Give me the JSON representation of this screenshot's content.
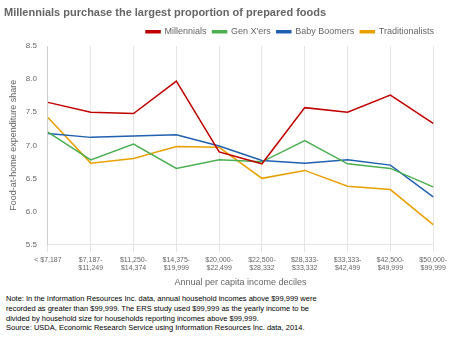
{
  "chart_data": {
    "type": "line",
    "title": "Millennials purchase the largest proportion of prepared foods",
    "ylabel": "Food-at-home expenditure share",
    "xlabel": "Annual per capita income deciles",
    "categories": [
      "< $7,187",
      "$7,187-\n$11,249",
      "$11,250-\n$14,374",
      "$14,375-\n$19,999",
      "$20,000-\n$22,499",
      "$22,500-\n$28,332",
      "$28,333-\n$33,332",
      "$33,333-\n$42,499",
      "$42,500-\n$49,999",
      "$50,000-\n$99,999"
    ],
    "series": [
      {
        "name": "Millennials",
        "color": "#c00000",
        "values": [
          7.65,
          7.5,
          7.48,
          7.97,
          6.9,
          6.72,
          7.57,
          7.5,
          7.76,
          7.33
        ]
      },
      {
        "name": "Gen X'ers",
        "color": "#4caf50",
        "values": [
          7.2,
          6.78,
          7.02,
          6.65,
          6.78,
          6.75,
          7.07,
          6.72,
          6.65,
          6.37
        ]
      },
      {
        "name": "Baby Boomers",
        "color": "#2060b0",
        "values": [
          7.18,
          7.12,
          7.14,
          7.16,
          6.99,
          6.77,
          6.73,
          6.78,
          6.7,
          6.22
        ]
      },
      {
        "name": "Traditionalists",
        "color": "#e8a000",
        "values": [
          7.42,
          6.73,
          6.8,
          6.98,
          6.97,
          6.5,
          6.62,
          6.38,
          6.33,
          5.8
        ]
      }
    ],
    "ylim": [
      5.5,
      8.5
    ],
    "yticks": [
      5.5,
      {
        "value": 6.0,
        "label": "6.0"
      },
      6.5,
      {
        "value": 7.0,
        "label": "7.0"
      },
      7.5,
      {
        "value": 8.0,
        "label": "8.0"
      },
      8.5
    ],
    "grid": "x",
    "legend": "upper right",
    "annotations": [
      "Note: In the Information Resources Inc. data, annual household incomes above $99,999 were",
      "recorded as greater than $99,999. The ERS study used $99,999 as the yearly income to be",
      "divided by household size for households reporting incomes above $99,999.",
      "Source: USDA, Economic Research Service using Information Resources Inc. data, 2014."
    ]
  }
}
